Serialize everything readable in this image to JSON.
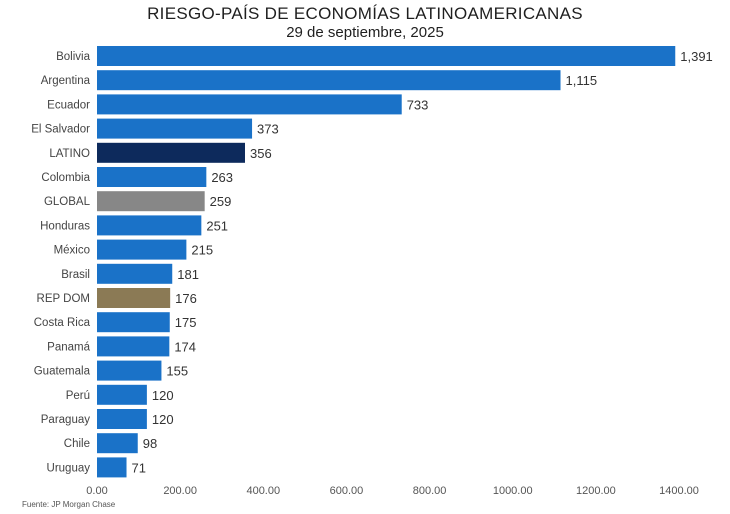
{
  "chart_data": {
    "type": "bar",
    "orientation": "horizontal",
    "title": "RIESGO-PAÍS DE ECONOMÍAS LATINOAMERICANAS",
    "subtitle": "29 de septiembre, 2025",
    "source": "Fuente: JP Morgan Chase",
    "categories": [
      "Bolivia",
      "Argentina",
      "Ecuador",
      "El Salvador",
      "LATINO",
      "Colombia",
      "GLOBAL",
      "Honduras",
      "México",
      "Brasil",
      "REP DOM",
      "Costa Rica",
      "Panamá",
      "Guatemala",
      "Perú",
      "Paraguay",
      "Chile",
      "Uruguay"
    ],
    "values": [
      1391,
      1115,
      733,
      373,
      356,
      263,
      259,
      251,
      215,
      181,
      176,
      175,
      174,
      155,
      120,
      120,
      98,
      71
    ],
    "value_labels": [
      "1,391",
      "1,115",
      "733",
      "373",
      "356",
      "263",
      "259",
      "251",
      "215",
      "181",
      "176",
      "175",
      "174",
      "155",
      "120",
      "120",
      "98",
      "71"
    ],
    "xlim": [
      0,
      1400
    ],
    "xticks": [
      0,
      200,
      400,
      600,
      800,
      1000,
      1200,
      1400
    ],
    "xtick_labels": [
      "0.00",
      "200.00",
      "400.00",
      "600.00",
      "800.00",
      "1000.00",
      "1200.00",
      "1400.00"
    ],
    "grid": false,
    "colors": {
      "default": "#1a72c8",
      "LATINO": "#0d2a5c",
      "GLOBAL": "#878787",
      "REP DOM": "#8b7a55"
    }
  }
}
